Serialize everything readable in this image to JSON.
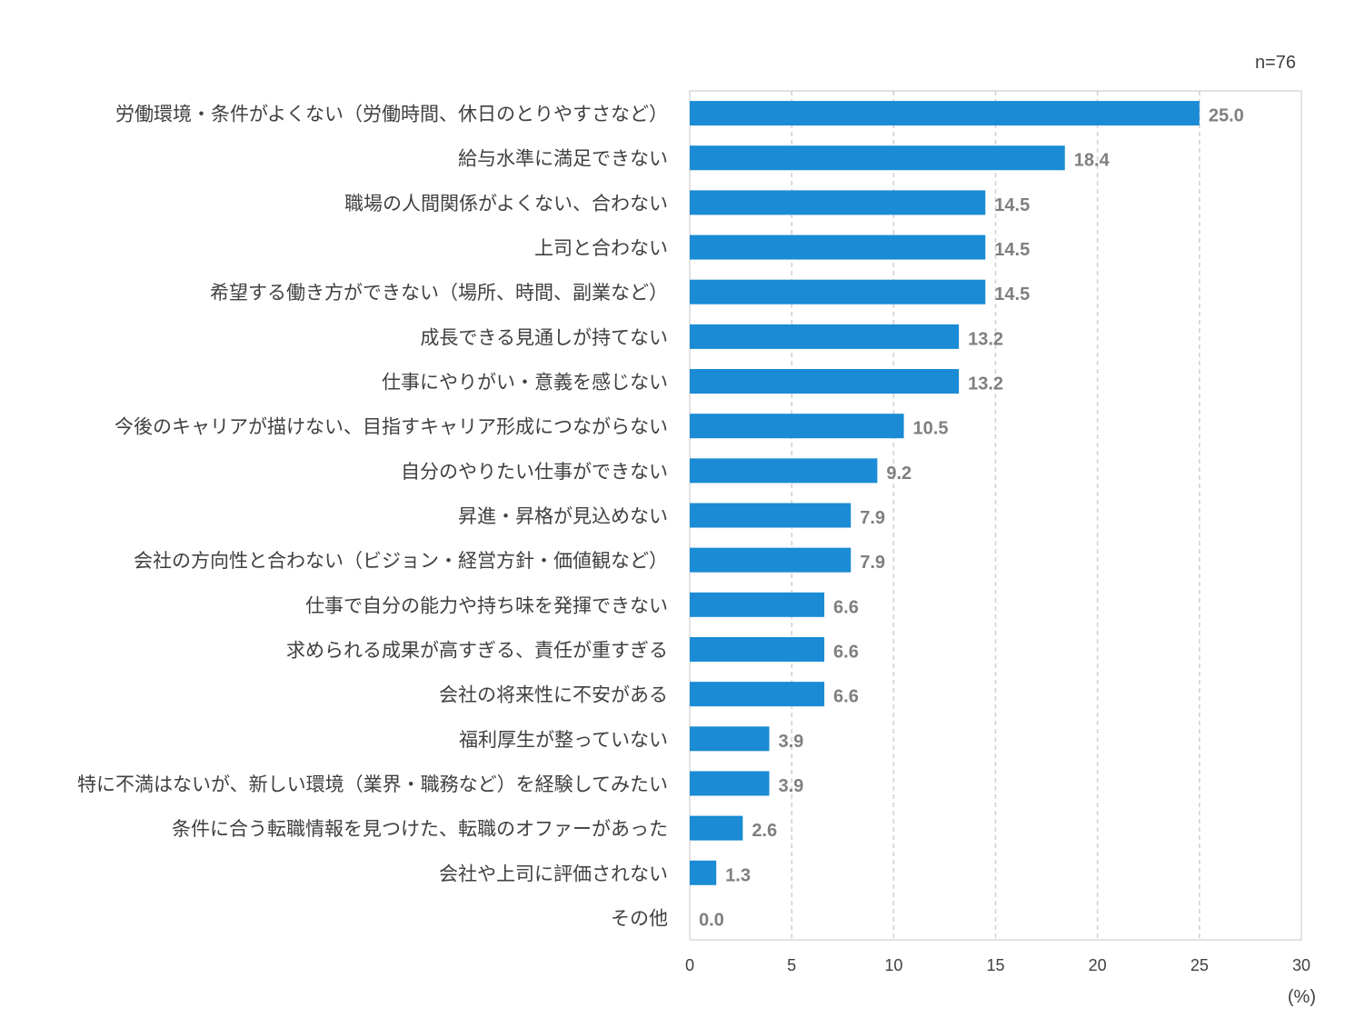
{
  "chart_data": {
    "type": "bar",
    "orientation": "horizontal",
    "sample_note": "n=76",
    "unit_label": "(%)",
    "categories": [
      "労働環境・条件がよくない（労働時間、休日のとりやすさなど）",
      "給与水準に満足できない",
      "職場の人間関係がよくない、合わない",
      "上司と合わない",
      "希望する働き方ができない（場所、時間、副業など）",
      "成長できる見通しが持てない",
      "仕事にやりがい・意義を感じない",
      "今後のキャリアが描けない、目指すキャリア形成につながらない",
      "自分のやりたい仕事ができない",
      "昇進・昇格が見込めない",
      "会社の方向性と合わない（ビジョン・経営方針・価値観など）",
      "仕事で自分の能力や持ち味を発揮できない",
      "求められる成果が高すぎる、責任が重すぎる",
      "会社の将来性に不安がある",
      "福利厚生が整っていない",
      "特に不満はないが、新しい環境（業界・職務など）を経験してみたい",
      "条件に合う転職情報を見つけた、転職のオファーがあった",
      "会社や上司に評価されない",
      "その他"
    ],
    "values": [
      25.0,
      18.4,
      14.5,
      14.5,
      14.5,
      13.2,
      13.2,
      10.5,
      9.2,
      7.9,
      7.9,
      6.6,
      6.6,
      6.6,
      3.9,
      3.9,
      2.6,
      1.3,
      0.0
    ],
    "value_labels": [
      "25.0",
      "18.4",
      "14.5",
      "14.5",
      "14.5",
      "13.2",
      "13.2",
      "10.5",
      "9.2",
      "7.9",
      "7.9",
      "6.6",
      "6.6",
      "6.6",
      "3.9",
      "3.9",
      "2.6",
      "1.3",
      "0.0"
    ],
    "xlim": [
      0,
      30
    ],
    "xticks": [
      "0",
      "5",
      "10",
      "15",
      "20",
      "25",
      "30"
    ],
    "grid": "vertical dashed",
    "bar_color": "#1a8bd4",
    "title": "",
    "xlabel": "",
    "ylabel": ""
  }
}
